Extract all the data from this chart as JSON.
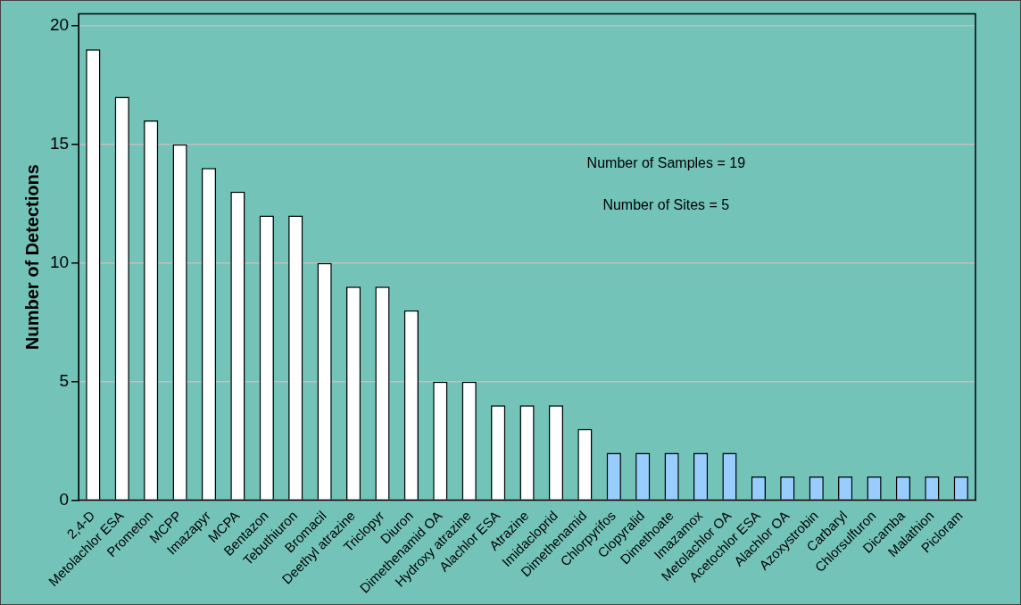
{
  "chart_data": {
    "type": "bar",
    "ylabel": "Number of Detections",
    "categories": [
      "2,4-D",
      "Metolachlor ESA",
      "Prometon",
      "MCPP",
      "Imazapyr",
      "MCPA",
      "Bentazon",
      "Tebuthiuron",
      "Bromacil",
      "Deethyl atrazine",
      "Triclopyr",
      "Diuron",
      "Dimethenamid OA",
      "Hydroxy atrazine",
      "Alachlor ESA",
      "Atrazine",
      "Imidacloprid",
      "Dimethenamid",
      "Chlorpyrifos",
      "Clopyralid",
      "Dimethoate",
      "Imazamox",
      "Metolachlor OA",
      "Acetochlor ESA",
      "Alachlor OA",
      "Azoxystrobin",
      "Carbaryl",
      "Chlorsulfuron",
      "Dicamba",
      "Malathion",
      "Picloram"
    ],
    "values": [
      19,
      17,
      16,
      15,
      14,
      13,
      12,
      12,
      10,
      9,
      9,
      8,
      5,
      5,
      4,
      4,
      4,
      3,
      2,
      2,
      2,
      2,
      2,
      1,
      1,
      1,
      1,
      1,
      1,
      1,
      1
    ],
    "colors": [
      "#ffffff",
      "#ffffff",
      "#ffffff",
      "#ffffff",
      "#ffffff",
      "#ffffff",
      "#ffffff",
      "#ffffff",
      "#ffffff",
      "#ffffff",
      "#ffffff",
      "#ffffff",
      "#ffffff",
      "#ffffff",
      "#ffffff",
      "#ffffff",
      "#ffffff",
      "#ffffff",
      "#99ccff",
      "#99ccff",
      "#99ccff",
      "#99ccff",
      "#99ccff",
      "#99ccff",
      "#99ccff",
      "#99ccff",
      "#99ccff",
      "#99ccff",
      "#99ccff",
      "#99ccff",
      "#99ccff"
    ],
    "ylim": [
      0,
      20.5
    ],
    "yticks": [
      0,
      5,
      10,
      15,
      20
    ],
    "grid": "y",
    "legend": false,
    "annotations": [
      "Number of Samples = 19",
      "Number of Sites = 5"
    ]
  }
}
